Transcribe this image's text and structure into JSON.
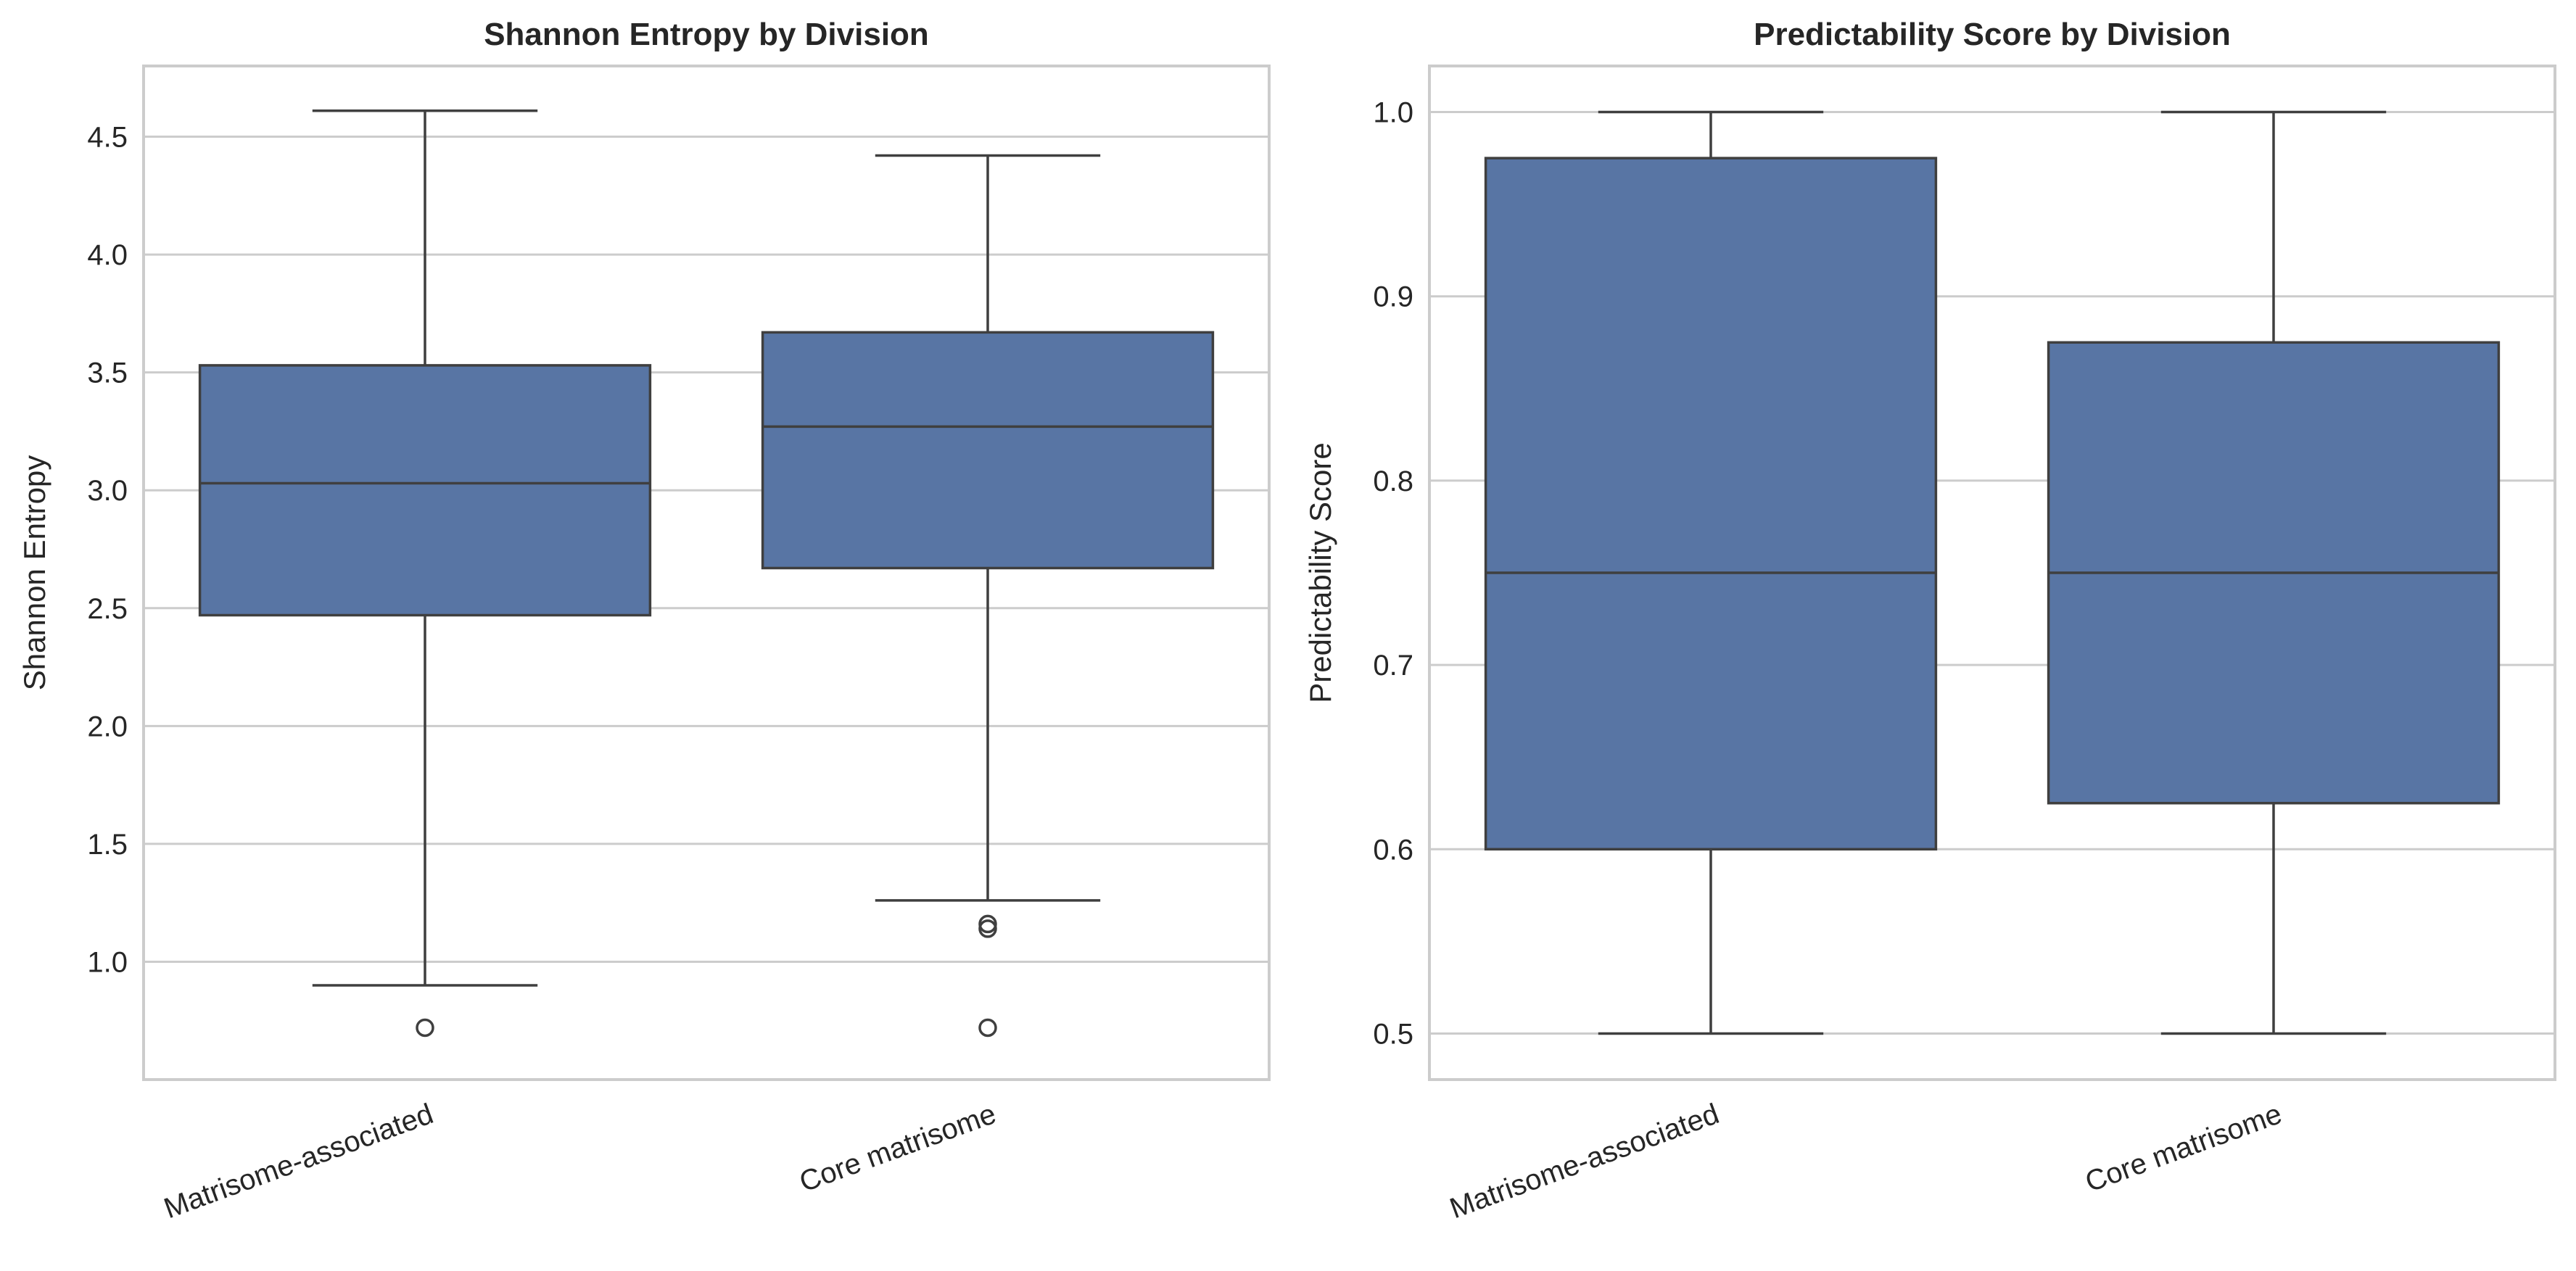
{
  "colors": {
    "box_fill": "#5875a4",
    "line": "#3f3f3f",
    "grid": "#cccccc",
    "frame": "#cccccc",
    "text": "#262626"
  },
  "chart_data": [
    {
      "type": "box",
      "title": "Shannon Entropy by Division",
      "xlabel": "",
      "ylabel": "Shannon Entropy",
      "ylim": [
        0.5,
        4.8
      ],
      "yticks": [
        1.0,
        1.5,
        2.0,
        2.5,
        3.0,
        3.5,
        4.0,
        4.5
      ],
      "ytick_labels": [
        "1.0",
        "1.5",
        "2.0",
        "2.5",
        "3.0",
        "3.5",
        "4.0",
        "4.5"
      ],
      "grid": true,
      "categories": [
        "Matrisome-associated",
        "Core matrisome"
      ],
      "boxes": [
        {
          "category": "Matrisome-associated",
          "whisker_low": 0.9,
          "q1": 2.47,
          "median": 3.03,
          "q3": 3.53,
          "whisker_high": 4.61,
          "outliers": [
            0.72
          ]
        },
        {
          "category": "Core matrisome",
          "whisker_low": 1.26,
          "q1": 2.67,
          "median": 3.27,
          "q3": 3.67,
          "whisker_high": 4.42,
          "outliers": [
            1.16,
            1.14,
            0.72
          ]
        }
      ]
    },
    {
      "type": "box",
      "title": "Predictability Score by Division",
      "xlabel": "",
      "ylabel": "Predictability Score",
      "ylim": [
        0.475,
        1.025
      ],
      "yticks": [
        0.5,
        0.6,
        0.7,
        0.8,
        0.9,
        1.0
      ],
      "ytick_labels": [
        "0.5",
        "0.6",
        "0.7",
        "0.8",
        "0.9",
        "1.0"
      ],
      "grid": true,
      "categories": [
        "Matrisome-associated",
        "Core matrisome"
      ],
      "boxes": [
        {
          "category": "Matrisome-associated",
          "whisker_low": 0.5,
          "q1": 0.6,
          "median": 0.75,
          "q3": 0.975,
          "whisker_high": 1.0,
          "outliers": []
        },
        {
          "category": "Core matrisome",
          "whisker_low": 0.5,
          "q1": 0.625,
          "median": 0.75,
          "q3": 0.875,
          "whisker_high": 1.0,
          "outliers": []
        }
      ]
    }
  ]
}
